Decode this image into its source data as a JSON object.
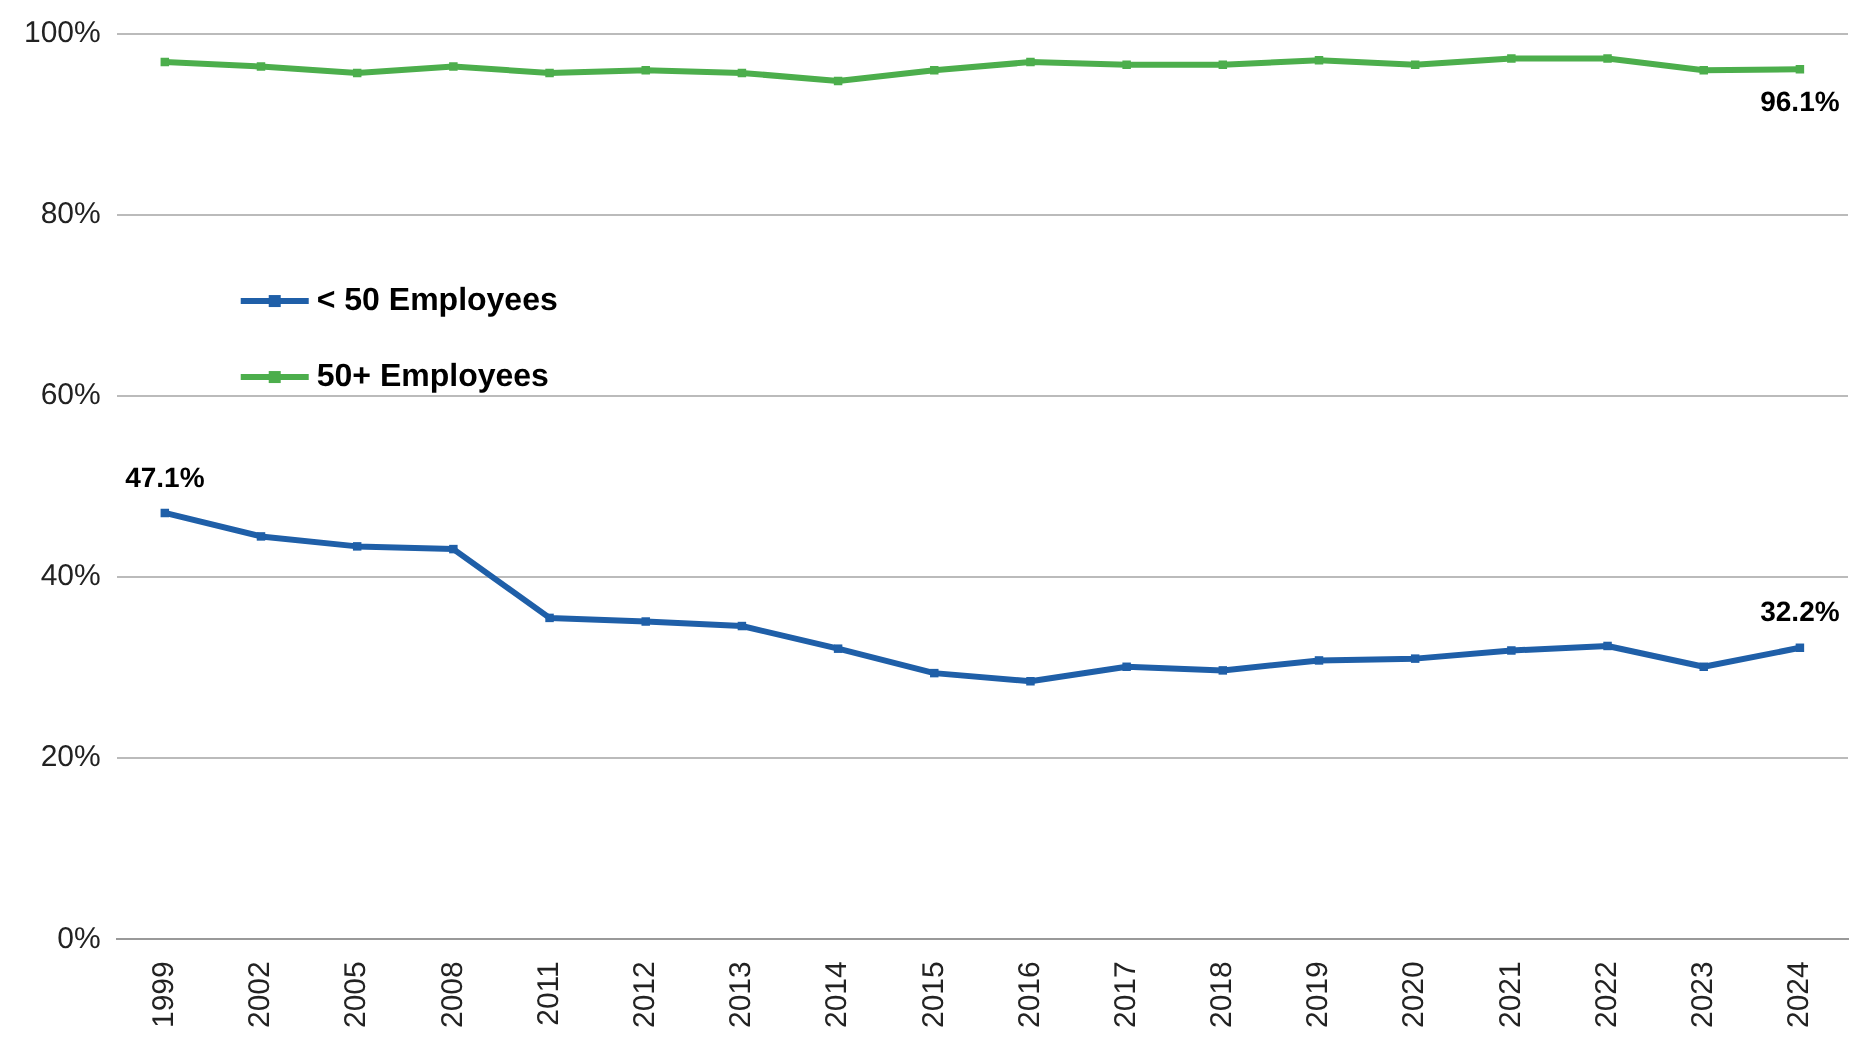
{
  "chart_data": {
    "type": "line",
    "categories": [
      "1999",
      "2002",
      "2005",
      "2008",
      "2011",
      "2012",
      "2013",
      "2014",
      "2015",
      "2016",
      "2017",
      "2018",
      "2019",
      "2020",
      "2021",
      "2022",
      "2023",
      "2024"
    ],
    "series": [
      {
        "name": "< 50 Employees",
        "color": "#1f5fa8",
        "values": [
          47.1,
          44.5,
          43.4,
          43.1,
          35.5,
          35.1,
          34.6,
          32.1,
          29.4,
          28.5,
          30.1,
          29.7,
          30.8,
          31.0,
          31.9,
          32.4,
          30.1,
          32.2
        ]
      },
      {
        "name": "50+ Employees",
        "color": "#4cae4c",
        "values": [
          96.9,
          96.4,
          95.7,
          96.4,
          95.7,
          96.0,
          95.7,
          94.8,
          96.0,
          96.9,
          96.6,
          96.6,
          97.1,
          96.6,
          97.3,
          97.3,
          96.0,
          96.1
        ]
      }
    ],
    "ylim": [
      0,
      100
    ],
    "yticks": [
      {
        "value": 0,
        "label": "0%"
      },
      {
        "value": 20,
        "label": "20%"
      },
      {
        "value": 40,
        "label": "40%"
      },
      {
        "value": 60,
        "label": "60%"
      },
      {
        "value": 80,
        "label": "80%"
      },
      {
        "value": 100,
        "label": "100%"
      }
    ],
    "grid": "y",
    "legend": "left",
    "marker": "square",
    "line_style": "solid",
    "annotations": [
      {
        "text": "47.1%",
        "x": "1999",
        "y": 47.1
      },
      {
        "text": "32.2%",
        "x": "2024",
        "y": 32.2
      },
      {
        "text": "96.1%",
        "x": "2024",
        "y": 96.1
      }
    ]
  }
}
